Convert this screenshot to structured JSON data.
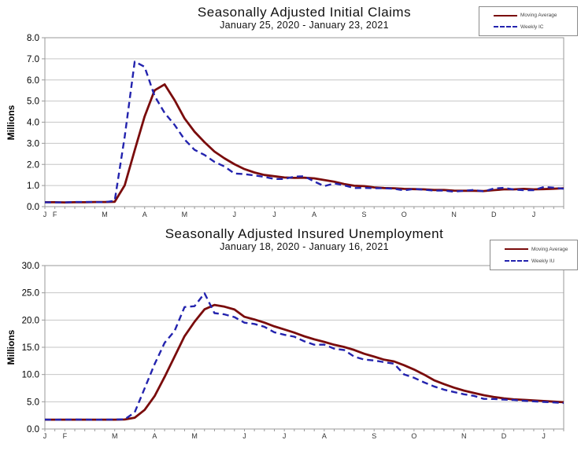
{
  "accent_colors": {
    "moving_average": "#7a0c0c",
    "weekly": "#2323ae",
    "gridline": "#c6c6c6",
    "plot_border": "#9a9a9a"
  },
  "chart_data": [
    {
      "type": "line",
      "title": "Seasonally Adjusted Initial Claims",
      "subtitle": "January 25, 2020 - January 23, 2021",
      "ylabel": "Millions",
      "ylim": [
        0,
        8
      ],
      "ytick_step": 1,
      "ytick_labels": [
        "0.0",
        "1.0",
        "2.0",
        "3.0",
        "4.0",
        "5.0",
        "6.0",
        "7.0",
        "8.0"
      ],
      "grid": true,
      "legend_position": "top-right",
      "weeks": 53,
      "months": [
        {
          "label": "J",
          "week": 0
        },
        {
          "label": "F",
          "week": 1
        },
        {
          "label": "M",
          "week": 6
        },
        {
          "label": "A",
          "week": 10
        },
        {
          "label": "M",
          "week": 14
        },
        {
          "label": "J",
          "week": 19
        },
        {
          "label": "J",
          "week": 23
        },
        {
          "label": "A",
          "week": 27
        },
        {
          "label": "S",
          "week": 32
        },
        {
          "label": "O",
          "week": 36
        },
        {
          "label": "N",
          "week": 41
        },
        {
          "label": "D",
          "week": 45
        },
        {
          "label": "J",
          "week": 49
        }
      ],
      "series": [
        {
          "name": "Moving Average",
          "color": "#7a0c0c",
          "style": "solid",
          "values": [
            0.21,
            0.21,
            0.2,
            0.21,
            0.21,
            0.22,
            0.22,
            0.23,
            1.01,
            2.67,
            4.27,
            5.51,
            5.79,
            5.04,
            4.18,
            3.55,
            3.05,
            2.61,
            2.29,
            2.01,
            1.78,
            1.62,
            1.5,
            1.44,
            1.38,
            1.36,
            1.37,
            1.34,
            1.26,
            1.18,
            1.07,
            0.99,
            0.97,
            0.91,
            0.88,
            0.87,
            0.84,
            0.83,
            0.82,
            0.79,
            0.79,
            0.76,
            0.75,
            0.75,
            0.74,
            0.78,
            0.82,
            0.82,
            0.84,
            0.82,
            0.83,
            0.85,
            0.87
          ]
        },
        {
          "name": "Weekly IC",
          "color": "#2323ae",
          "style": "dashed",
          "values": [
            0.21,
            0.2,
            0.2,
            0.22,
            0.22,
            0.22,
            0.21,
            0.28,
            3.31,
            6.87,
            6.62,
            5.24,
            4.44,
            3.87,
            3.18,
            2.69,
            2.45,
            2.12,
            1.9,
            1.57,
            1.54,
            1.48,
            1.41,
            1.31,
            1.31,
            1.42,
            1.44,
            1.19,
            0.97,
            1.1,
            1.01,
            0.88,
            0.89,
            0.87,
            0.87,
            0.85,
            0.77,
            0.84,
            0.8,
            0.76,
            0.76,
            0.71,
            0.75,
            0.79,
            0.72,
            0.86,
            0.89,
            0.81,
            0.78,
            0.78,
            0.93,
            0.9,
            0.85
          ]
        }
      ]
    },
    {
      "type": "line",
      "title": "Seasonally Adjusted Insured Unemployment",
      "subtitle": "January 18, 2020 - January 16, 2021",
      "ylabel": "Millions",
      "ylim": [
        0,
        30
      ],
      "ytick_step": 5,
      "ytick_labels": [
        "0.0",
        "5.0",
        "10.0",
        "15.0",
        "20.0",
        "25.0",
        "30.0"
      ],
      "grid": true,
      "legend_position": "top-right",
      "weeks": 53,
      "months": [
        {
          "label": "J",
          "week": 0
        },
        {
          "label": "F",
          "week": 2
        },
        {
          "label": "M",
          "week": 7
        },
        {
          "label": "A",
          "week": 11
        },
        {
          "label": "M",
          "week": 15
        },
        {
          "label": "J",
          "week": 20
        },
        {
          "label": "J",
          "week": 24
        },
        {
          "label": "A",
          "week": 28
        },
        {
          "label": "S",
          "week": 33
        },
        {
          "label": "O",
          "week": 37
        },
        {
          "label": "N",
          "week": 42
        },
        {
          "label": "D",
          "week": 46
        },
        {
          "label": "J",
          "week": 50
        }
      ],
      "series": [
        {
          "name": "Moving Average",
          "color": "#7a0c0c",
          "style": "solid",
          "values": [
            1.72,
            1.72,
            1.72,
            1.72,
            1.72,
            1.72,
            1.72,
            1.72,
            1.74,
            2.07,
            3.5,
            6.05,
            9.56,
            13.3,
            17.03,
            19.69,
            21.96,
            22.78,
            22.45,
            21.94,
            20.6,
            20.1,
            19.53,
            18.83,
            18.28,
            17.69,
            17.02,
            16.46,
            16.0,
            15.46,
            15.06,
            14.51,
            13.82,
            13.28,
            12.72,
            12.4,
            11.71,
            10.92,
            9.99,
            8.95,
            8.25,
            7.6,
            7.05,
            6.62,
            6.2,
            5.88,
            5.63,
            5.44,
            5.35,
            5.24,
            5.14,
            5.02,
            4.92
          ]
        },
        {
          "name": "Weekly IU",
          "color": "#2323ae",
          "style": "dashed",
          "values": [
            1.72,
            1.7,
            1.72,
            1.73,
            1.72,
            1.7,
            1.71,
            1.73,
            1.77,
            3.06,
            7.45,
            11.91,
            15.82,
            18.01,
            22.38,
            22.55,
            24.91,
            21.27,
            21.05,
            20.54,
            19.52,
            19.29,
            18.76,
            17.75,
            17.3,
            16.95,
            16.09,
            15.48,
            15.49,
            14.76,
            14.49,
            13.29,
            12.75,
            12.58,
            12.27,
            11.98,
            10.02,
            9.4,
            8.57,
            7.82,
            7.22,
            6.8,
            6.37,
            6.09,
            5.53,
            5.51,
            5.39,
            5.32,
            5.18,
            5.07,
            4.97,
            4.87,
            4.77
          ]
        }
      ]
    }
  ]
}
